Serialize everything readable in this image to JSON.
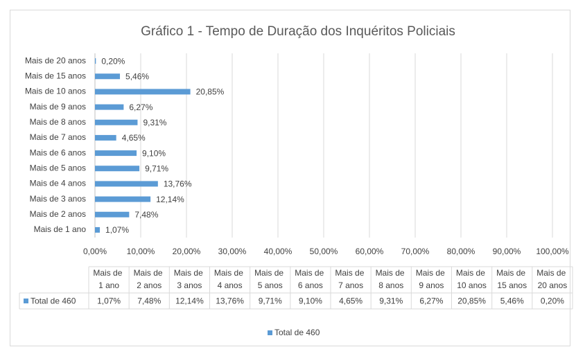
{
  "chart_data": {
    "type": "barh",
    "title": "Gráfico 1 - Tempo de Duração dos Inquéritos Policiais",
    "categories": [
      "Mais de 1 ano",
      "Mais de 2 anos",
      "Mais de 3 anos",
      "Mais de 4 anos",
      "Mais de 5 anos",
      "Mais de 6 anos",
      "Mais de 7 anos",
      "Mais de 8 anos",
      "Mais de 9 anos",
      "Mais de 10 anos",
      "Mais de 15 anos",
      "Mais de 20 anos"
    ],
    "series": [
      {
        "name": "Total de 460",
        "color": "#5b9bd5",
        "values": [
          1.07,
          7.48,
          12.14,
          13.76,
          9.71,
          9.1,
          4.65,
          9.31,
          6.27,
          20.85,
          5.46,
          0.2
        ],
        "value_labels": [
          "1,07%",
          "7,48%",
          "12,14%",
          "13,76%",
          "9,71%",
          "9,10%",
          "4,65%",
          "9,31%",
          "6,27%",
          "20,85%",
          "5,46%",
          "0,20%"
        ]
      }
    ],
    "xlim": [
      0,
      100
    ],
    "xticks": [
      {
        "value": 0,
        "label": "0,00%"
      },
      {
        "value": 10,
        "label": "10,00%"
      },
      {
        "value": 20,
        "label": "20,00%"
      },
      {
        "value": 30,
        "label": "30,00%"
      },
      {
        "value": 40,
        "label": "40,00%"
      },
      {
        "value": 50,
        "label": "50,00%"
      },
      {
        "value": 60,
        "label": "60,00%"
      },
      {
        "value": 70,
        "label": "70,00%"
      },
      {
        "value": 80,
        "label": "80,00%"
      },
      {
        "value": 90,
        "label": "90,00%"
      },
      {
        "value": 100,
        "label": "100,00%"
      }
    ],
    "grid": true,
    "legend": "bottom"
  }
}
